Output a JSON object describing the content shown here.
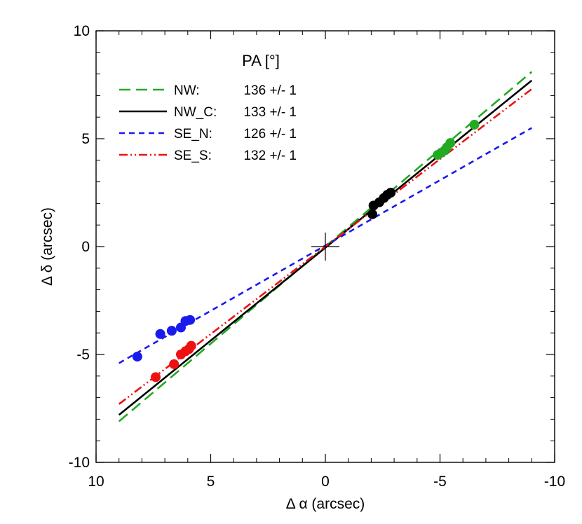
{
  "chart_data": {
    "type": "scatter",
    "title": "",
    "xlabel": "Δ α  (arcsec)",
    "ylabel": "Δ δ  (arcsec)",
    "xlim": [
      10,
      -10
    ],
    "ylim": [
      -10,
      10
    ],
    "x_ticks": [
      10,
      5,
      0,
      -5,
      -10
    ],
    "y_ticks": [
      -10,
      -5,
      0,
      5,
      10
    ],
    "x_tick_labels": [
      "10",
      "5",
      "0",
      "-5",
      "-10"
    ],
    "y_tick_labels": [
      "-10",
      "-5",
      "0",
      "5",
      "10"
    ],
    "grid": false,
    "legend_title": "PA [°]",
    "legend_position": "top-left",
    "origin_marker": [
      0,
      0
    ],
    "series": [
      {
        "name": "NW:",
        "value_label": "136 +/- 1",
        "color": "#22aa22",
        "dash": "long-dash",
        "line": [
          [
            9.0,
            -8.1
          ],
          [
            -9.0,
            8.1
          ]
        ],
        "points": [
          [
            -4.9,
            4.25
          ],
          [
            -5.05,
            4.35
          ],
          [
            -5.2,
            4.45
          ],
          [
            -5.3,
            4.6
          ],
          [
            -5.45,
            4.8
          ],
          [
            -6.5,
            5.65
          ]
        ]
      },
      {
        "name": "NW_C:",
        "value_label": "133 +/- 1",
        "color": "#000000",
        "dash": "solid",
        "line": [
          [
            9.0,
            -7.8
          ],
          [
            -9.0,
            7.7
          ]
        ],
        "points": [
          [
            -2.05,
            1.5
          ],
          [
            -2.1,
            1.9
          ],
          [
            -2.35,
            2.05
          ],
          [
            -2.55,
            2.25
          ],
          [
            -2.7,
            2.4
          ],
          [
            -2.85,
            2.5
          ]
        ]
      },
      {
        "name": "SE_N:",
        "value_label": "126 +/- 1",
        "color": "#1a1aee",
        "dash": "short-dash",
        "line": [
          [
            9.0,
            -5.4
          ],
          [
            -9.0,
            5.5
          ]
        ],
        "points": [
          [
            8.2,
            -5.1
          ],
          [
            7.2,
            -4.05
          ],
          [
            6.7,
            -3.9
          ],
          [
            6.3,
            -3.75
          ],
          [
            6.1,
            -3.45
          ],
          [
            5.9,
            -3.4
          ]
        ]
      },
      {
        "name": "SE_S:",
        "value_label": "132 +/- 1",
        "color": "#ee1111",
        "dash": "dash-dot-dot",
        "line": [
          [
            9.0,
            -7.3
          ],
          [
            -9.0,
            7.3
          ]
        ],
        "points": [
          [
            7.4,
            -6.05
          ],
          [
            6.6,
            -5.45
          ],
          [
            6.3,
            -5.0
          ],
          [
            6.1,
            -4.85
          ],
          [
            5.95,
            -4.75
          ],
          [
            5.85,
            -4.6
          ]
        ]
      }
    ]
  }
}
